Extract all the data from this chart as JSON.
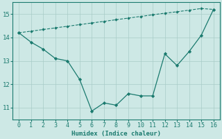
{
  "x": [
    0,
    1,
    2,
    3,
    4,
    5,
    6,
    7,
    8,
    9,
    10,
    11,
    12,
    13,
    14,
    15,
    16
  ],
  "y_curve": [
    14.2,
    13.8,
    13.5,
    13.1,
    13.0,
    12.2,
    10.85,
    11.2,
    11.1,
    11.6,
    11.5,
    11.5,
    13.3,
    12.8,
    13.4,
    14.1,
    15.2
  ],
  "y_trend": [
    14.2,
    14.27,
    14.34,
    14.41,
    14.48,
    14.55,
    14.62,
    14.69,
    14.76,
    14.83,
    14.9,
    14.97,
    15.04,
    15.1,
    15.17,
    15.24,
    15.2
  ],
  "line_color": "#1a7a6e",
  "bg_color": "#cde8e5",
  "grid_color": "#a8ccc8",
  "xlabel": "Humidex (Indice chaleur)",
  "ylim": [
    10.5,
    15.5
  ],
  "xlim": [
    -0.5,
    16.5
  ],
  "yticks": [
    11,
    12,
    13,
    14,
    15
  ],
  "xticks": [
    0,
    1,
    2,
    3,
    4,
    5,
    6,
    7,
    8,
    9,
    10,
    11,
    12,
    13,
    14,
    15,
    16
  ]
}
